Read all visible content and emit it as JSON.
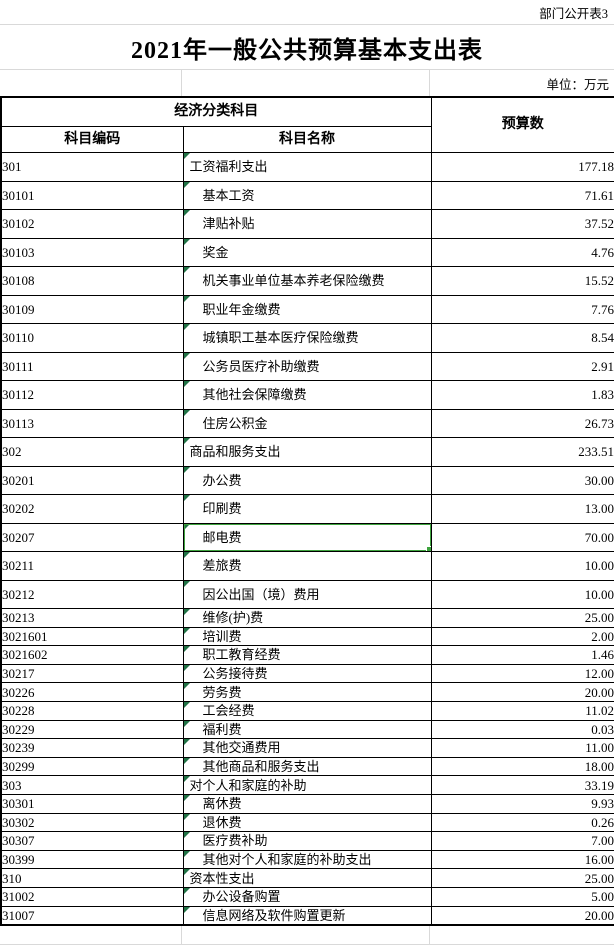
{
  "page": {
    "corner_label": "部门公开表3",
    "title": "2021年一般公共预算基本支出表",
    "unit_label": "单位：万元"
  },
  "table": {
    "header": {
      "group_label": "经济分类科目",
      "code_label": "科目编码",
      "name_label": "科目名称",
      "value_label": "预算数"
    },
    "rows": [
      {
        "code": "301",
        "name": "工资福利支出",
        "value": "177.18",
        "level": 1,
        "size": "tall"
      },
      {
        "code": "30101",
        "name": "基本工资",
        "value": "71.61",
        "level": 2,
        "size": "tall"
      },
      {
        "code": "30102",
        "name": "津贴补贴",
        "value": "37.52",
        "level": 2,
        "size": "tall"
      },
      {
        "code": "30103",
        "name": "奖金",
        "value": "4.76",
        "level": 2,
        "size": "tall"
      },
      {
        "code": "30108",
        "name": "机关事业单位基本养老保险缴费",
        "value": "15.52",
        "level": 2,
        "size": "tall"
      },
      {
        "code": "30109",
        "name": "职业年金缴费",
        "value": "7.76",
        "level": 2,
        "size": "tall"
      },
      {
        "code": "30110",
        "name": "城镇职工基本医疗保险缴费",
        "value": "8.54",
        "level": 2,
        "size": "tall"
      },
      {
        "code": "30111",
        "name": "公务员医疗补助缴费",
        "value": "2.91",
        "level": 2,
        "size": "tall"
      },
      {
        "code": "30112",
        "name": "其他社会保障缴费",
        "value": "1.83",
        "level": 2,
        "size": "tall"
      },
      {
        "code": "30113",
        "name": "住房公积金",
        "value": "26.73",
        "level": 2,
        "size": "tall"
      },
      {
        "code": "302",
        "name": "商品和服务支出",
        "value": "233.51",
        "level": 1,
        "size": "tall"
      },
      {
        "code": "30201",
        "name": "办公费",
        "value": "30.00",
        "level": 2,
        "size": "tall"
      },
      {
        "code": "30202",
        "name": "印刷费",
        "value": "13.00",
        "level": 2,
        "size": "tall"
      },
      {
        "code": "30207",
        "name": "邮电费",
        "value": "70.00",
        "level": 2,
        "size": "tall"
      },
      {
        "code": "30211",
        "name": "差旅费",
        "value": "10.00",
        "level": 2,
        "size": "tall"
      },
      {
        "code": "30212",
        "name": "因公出国（境）费用",
        "value": "10.00",
        "level": 2,
        "size": "tall"
      },
      {
        "code": "30213",
        "name": "维修(护)费",
        "value": "25.00",
        "level": 2,
        "size": "short"
      },
      {
        "code": "3021601",
        "name": "培训费",
        "value": "2.00",
        "level": 2,
        "size": "short"
      },
      {
        "code": "3021602",
        "name": "职工教育经费",
        "value": "1.46",
        "level": 2,
        "size": "short"
      },
      {
        "code": "30217",
        "name": "公务接待费",
        "value": "12.00",
        "level": 2,
        "size": "short"
      },
      {
        "code": "30226",
        "name": "劳务费",
        "value": "20.00",
        "level": 2,
        "size": "short"
      },
      {
        "code": "30228",
        "name": "工会经费",
        "value": "11.02",
        "level": 2,
        "size": "short"
      },
      {
        "code": "30229",
        "name": "福利费",
        "value": "0.03",
        "level": 2,
        "size": "short"
      },
      {
        "code": "30239",
        "name": "其他交通费用",
        "value": "11.00",
        "level": 2,
        "size": "short"
      },
      {
        "code": "30299",
        "name": "其他商品和服务支出",
        "value": "18.00",
        "level": 2,
        "size": "short"
      },
      {
        "code": "303",
        "name": "对个人和家庭的补助",
        "value": "33.19",
        "level": 1,
        "size": "short"
      },
      {
        "code": "30301",
        "name": "离休费",
        "value": "9.93",
        "level": 2,
        "size": "short"
      },
      {
        "code": "30302",
        "name": "退休费",
        "value": "0.26",
        "level": 2,
        "size": "short"
      },
      {
        "code": "30307",
        "name": "医疗费补助",
        "value": "7.00",
        "level": 2,
        "size": "short"
      },
      {
        "code": "30399",
        "name": "其他对个人和家庭的补助支出",
        "value": "16.00",
        "level": 2,
        "size": "short"
      },
      {
        "code": "310",
        "name": "资本性支出",
        "value": "25.00",
        "level": 1,
        "size": "short"
      },
      {
        "code": "31002",
        "name": "办公设备购置",
        "value": "5.00",
        "level": 2,
        "size": "short"
      },
      {
        "code": "31007",
        "name": "信息网络及软件购置更新",
        "value": "20.00",
        "level": 2,
        "size": "short"
      }
    ]
  },
  "selection": {
    "selected_row_code": "30207",
    "warning_glyph": "!"
  },
  "colors": {
    "selection_green": "#3fa43f",
    "triangle_green": "#217346",
    "warning_orange": "#e8a33d",
    "grid_line": "#d9d9d9",
    "table_border": "#000000"
  }
}
